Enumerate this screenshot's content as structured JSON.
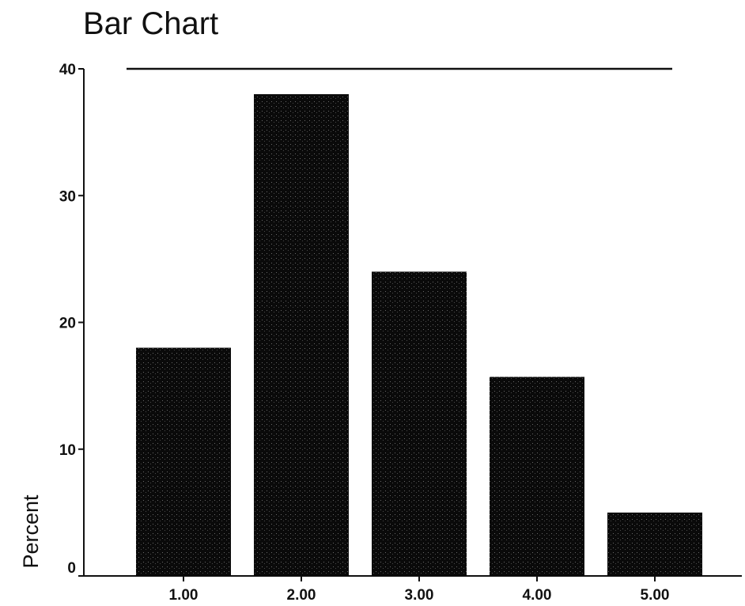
{
  "chart_data": {
    "type": "bar",
    "title": "Bar Chart",
    "xlabel": "",
    "ylabel": "Percent",
    "categories": [
      "1.00",
      "2.00",
      "3.00",
      "4.00",
      "5.00"
    ],
    "values": [
      18,
      38,
      24,
      15.7,
      5
    ],
    "ylim": [
      0,
      40
    ],
    "yticks": [
      0,
      10,
      20,
      30,
      40
    ],
    "grid": false,
    "bar_color": "#0a0a0a"
  }
}
